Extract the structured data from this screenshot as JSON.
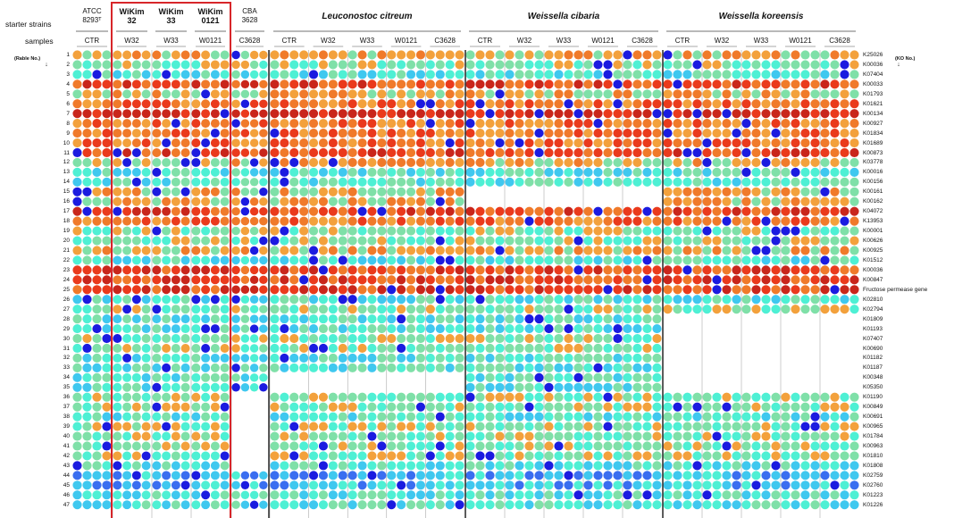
{
  "header": {
    "strains_label": "starter strains",
    "samples_label": "samples",
    "row_axis_label": "(Rable No.)",
    "row_axis_arrow": "↓",
    "ko_axis_label": "(KO No.)",
    "ko_axis_arrow": "↓"
  },
  "strains": [
    {
      "name": "ATCC\n8293ᵀ",
      "style": "small",
      "samples": [
        "CTR"
      ]
    },
    {
      "name": "WiKim\n32",
      "style": "bold",
      "samples": [
        "W32"
      ]
    },
    {
      "name": "WiKim\n33",
      "style": "bold",
      "samples": [
        "W33"
      ]
    },
    {
      "name": "WiKim\n0121",
      "style": "bold",
      "samples": [
        "W0121"
      ]
    },
    {
      "name": "CBA\n3628",
      "style": "small",
      "samples": [
        "C3628"
      ]
    },
    {
      "name": "Leuconostoc citreum",
      "style": "italic",
      "samples": [
        "CTR",
        "W32",
        "W33",
        "W0121",
        "C3628"
      ]
    },
    {
      "name": "Weissella cibaria",
      "style": "italic",
      "samples": [
        "CTR",
        "W32",
        "W33",
        "W0121",
        "C3628"
      ]
    },
    {
      "name": "Weissella koreensis",
      "style": "italic",
      "samples": [
        "CTR",
        "W32",
        "W33",
        "W0121",
        "C3628"
      ]
    }
  ],
  "rows": [
    {
      "n": "1",
      "ko": "K25026"
    },
    {
      "n": "2",
      "ko": "K00036"
    },
    {
      "n": "3",
      "ko": "K07404"
    },
    {
      "n": "4",
      "ko": "K00033"
    },
    {
      "n": "5",
      "ko": "K01793"
    },
    {
      "n": "6",
      "ko": "K01621"
    },
    {
      "n": "7",
      "ko": "K00134"
    },
    {
      "n": "8",
      "ko": "K00927"
    },
    {
      "n": "9",
      "ko": "K01834"
    },
    {
      "n": "10",
      "ko": "K01689"
    },
    {
      "n": "11",
      "ko": "K00873"
    },
    {
      "n": "12",
      "ko": "K03778"
    },
    {
      "n": "13",
      "ko": "K00016"
    },
    {
      "n": "14",
      "ko": "K00156"
    },
    {
      "n": "15",
      "ko": "K00161"
    },
    {
      "n": "16",
      "ko": "K00162"
    },
    {
      "n": "17",
      "ko": "K04072"
    },
    {
      "n": "18",
      "ko": "K13953"
    },
    {
      "n": "19",
      "ko": "K00001"
    },
    {
      "n": "20",
      "ko": "K00626"
    },
    {
      "n": "21",
      "ko": "K00925"
    },
    {
      "n": "22",
      "ko": "K01512"
    },
    {
      "n": "23",
      "ko": "K00036"
    },
    {
      "n": "24",
      "ko": "K00847"
    },
    {
      "n": "25",
      "ko": "Fructose permease gene"
    },
    {
      "n": "26",
      "ko": "K02810"
    },
    {
      "n": "27",
      "ko": "K02794"
    },
    {
      "n": "28",
      "ko": "K01809"
    },
    {
      "n": "29",
      "ko": "K01193"
    },
    {
      "n": "30",
      "ko": "K07407"
    },
    {
      "n": "31",
      "ko": "K00690"
    },
    {
      "n": "32",
      "ko": "K01182"
    },
    {
      "n": "33",
      "ko": "K01187"
    },
    {
      "n": "34",
      "ko": "K00348"
    },
    {
      "n": "35",
      "ko": "K05350"
    },
    {
      "n": "36",
      "ko": "K01190"
    },
    {
      "n": "37",
      "ko": "K00849"
    },
    {
      "n": "38",
      "ko": "K00691"
    },
    {
      "n": "39",
      "ko": "K00965"
    },
    {
      "n": "40",
      "ko": "K01784"
    },
    {
      "n": "41",
      "ko": "K00963"
    },
    {
      "n": "42",
      "ko": "K01810"
    },
    {
      "n": "43",
      "ko": "K01808"
    },
    {
      "n": "44",
      "ko": "K02759"
    },
    {
      "n": "45",
      "ko": "K02760"
    },
    {
      "n": "46",
      "ko": "K01223"
    },
    {
      "n": "47",
      "ko": "K01226"
    }
  ],
  "colors": {
    "scale": [
      "#1b1be0",
      "#3a6ef0",
      "#3fc8ef",
      "#4ef0d4",
      "#7fe0a8",
      "#f3a13c",
      "#f07a2a",
      "#ea3a1c",
      "#c9261b"
    ],
    "highlight_box": "#d7262a",
    "separator": "#333333",
    "grid": "#999999"
  }
}
